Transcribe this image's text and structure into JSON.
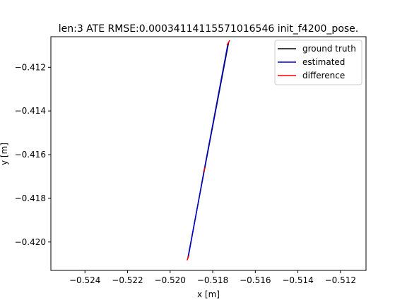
{
  "chart_data": {
    "type": "line",
    "title": "len:3 ATE RMSE:0.00034114115571016546 init_f4200_pose.",
    "xlabel": "x [m]",
    "ylabel": "y [m]",
    "xlim": [
      -0.5256,
      -0.5108
    ],
    "ylim": [
      -0.4213,
      -0.4106
    ],
    "xticks": [
      -0.524,
      -0.522,
      -0.52,
      -0.518,
      -0.516,
      -0.514,
      -0.512
    ],
    "xtick_labels": [
      "−0.524",
      "−0.522",
      "−0.520",
      "−0.518",
      "−0.516",
      "−0.514",
      "−0.512"
    ],
    "yticks": [
      -0.412,
      -0.414,
      -0.416,
      -0.418,
      -0.42
    ],
    "ytick_labels": [
      "−0.412",
      "−0.414",
      "−0.416",
      "−0.418",
      "−0.420"
    ],
    "legend_position": "top-right",
    "series": [
      {
        "name": "ground truth",
        "color": "#000000",
        "x": [
          -0.51917,
          -0.51838,
          -0.51725
        ],
        "y": [
          -0.42075,
          -0.41665,
          -0.41085
        ]
      },
      {
        "name": "estimated",
        "color": "#0000cc",
        "x": [
          -0.51915,
          -0.5184,
          -0.51728
        ],
        "y": [
          -0.4207,
          -0.4167,
          -0.4109
        ]
      },
      {
        "name": "difference",
        "color": "#ff0000",
        "segments": [
          [
            [
              -0.51917,
              -0.42075
            ],
            [
              -0.51915,
              -0.4207
            ]
          ],
          [
            [
              -0.51838,
              -0.41665
            ],
            [
              -0.5184,
              -0.4167
            ]
          ],
          [
            [
              -0.51725,
              -0.41085
            ],
            [
              -0.51728,
              -0.4109
            ]
          ]
        ]
      }
    ]
  }
}
